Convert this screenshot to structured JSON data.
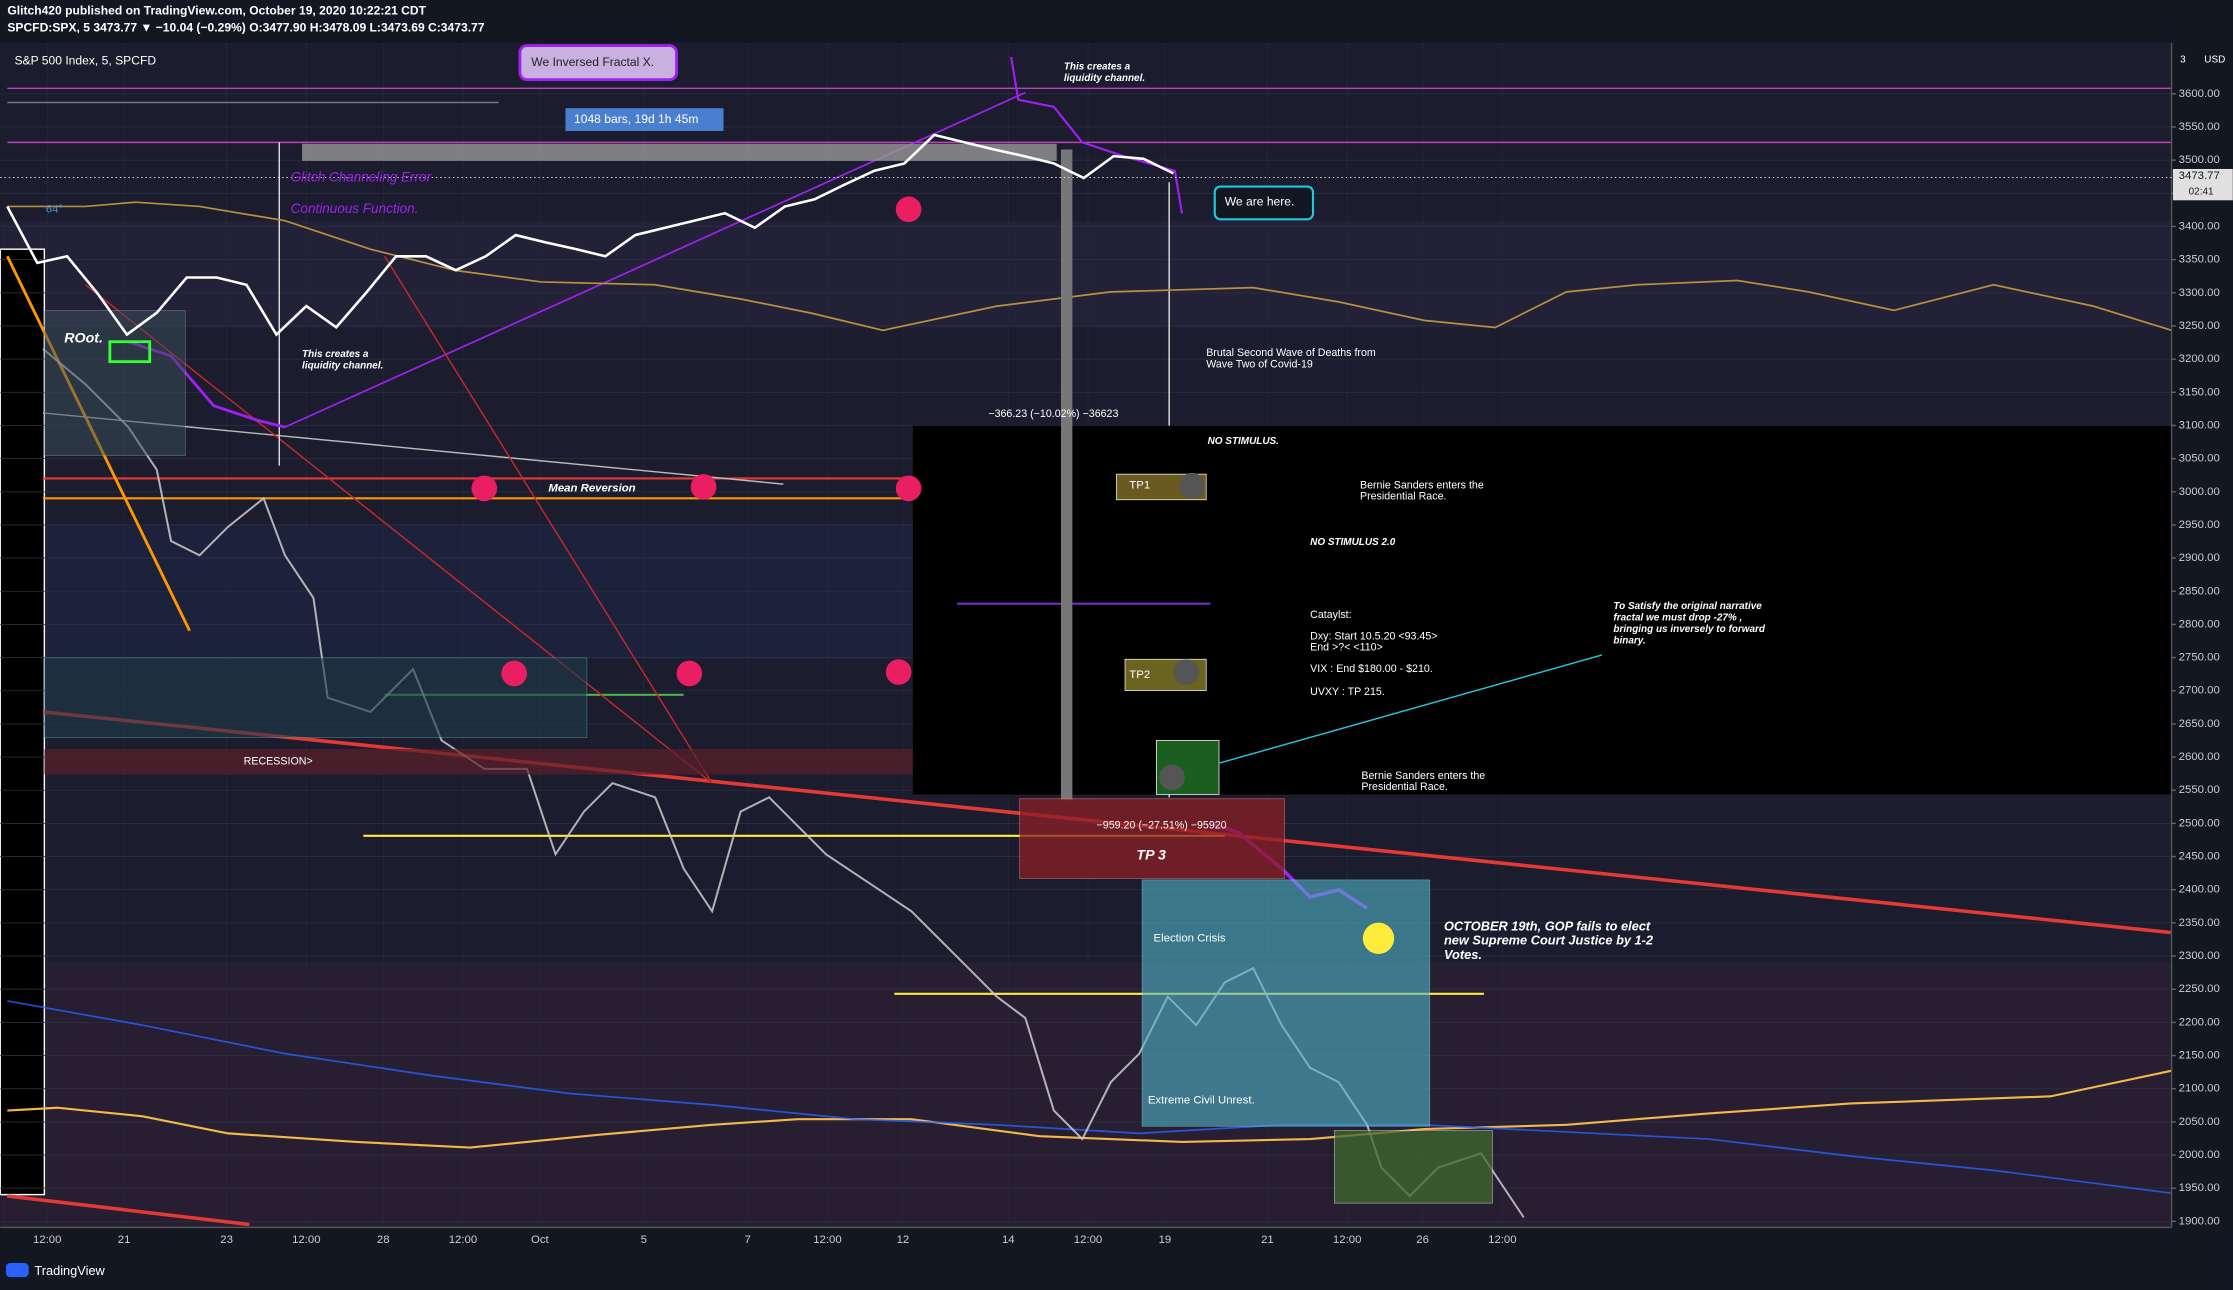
{
  "header": {
    "author_line": "Glitch420 published on TradingView.com, October 19, 2020 10:22:21 CDT",
    "symbol_line": "SPCFD:SPX, 5  3473.77 ▼ −10.04 (−0.29%) O:3477.90 H:3478.09 L:3473.69 C:3473.77"
  },
  "footer": {
    "brand": "TradingView"
  },
  "chart_data": {
    "type": "line",
    "title": "S&P 500 Index, 5, SPCFD",
    "y_unit": "USD",
    "axis_corner": "3",
    "color": "#ffffff",
    "values": [
      3430,
      3345,
      3355,
      3300,
      3237,
      3270,
      3323,
      3323,
      3312,
      3237,
      3280,
      3248,
      3300,
      3355,
      3355,
      3334,
      3355,
      3387,
      3376,
      3366,
      3355,
      3387,
      3398,
      3409,
      3420,
      3398,
      3430,
      3441,
      3463,
      3484,
      3495,
      3538,
      3527,
      3516,
      3506,
      3495,
      3473,
      3506,
      3502,
      3480
    ],
    "last_price": {
      "value": 3473.77,
      "label": "3473.77"
    },
    "countdown": "02:41",
    "ylim": [
      1891,
      3677
    ],
    "yticks": [
      {
        "value": 1900,
        "label": "1900.00"
      },
      {
        "value": 1950,
        "label": "1950.00"
      },
      {
        "value": 2000,
        "label": "2000.00"
      },
      {
        "value": 2050,
        "label": "2050.00"
      },
      {
        "value": 2100,
        "label": "2100.00"
      },
      {
        "value": 2150,
        "label": "2150.00"
      },
      {
        "value": 2200,
        "label": "2200.00"
      },
      {
        "value": 2250,
        "label": "2250.00"
      },
      {
        "value": 2300,
        "label": "2300.00"
      },
      {
        "value": 2350,
        "label": "2350.00"
      },
      {
        "value": 2400,
        "label": "2400.00"
      },
      {
        "value": 2450,
        "label": "2450.00"
      },
      {
        "value": 2500,
        "label": "2500.00"
      },
      {
        "value": 2550,
        "label": "2550.00"
      },
      {
        "value": 2600,
        "label": "2600.00"
      },
      {
        "value": 2650,
        "label": "2650.00"
      },
      {
        "value": 2700,
        "label": "2700.00"
      },
      {
        "value": 2750,
        "label": "2750.00"
      },
      {
        "value": 2800,
        "label": "2800.00"
      },
      {
        "value": 2850,
        "label": "2850.00"
      },
      {
        "value": 2900,
        "label": "2900.00"
      },
      {
        "value": 2950,
        "label": "2950.00"
      },
      {
        "value": 3000,
        "label": "3000.00"
      },
      {
        "value": 3050,
        "label": "3050.00"
      },
      {
        "value": 3100,
        "label": "3100.00"
      },
      {
        "value": 3150,
        "label": "3150.00"
      },
      {
        "value": 3200,
        "label": "3200.00"
      },
      {
        "value": 3250,
        "label": "3250.00"
      },
      {
        "value": 3300,
        "label": "3300.00"
      },
      {
        "value": 3350,
        "label": "3350.00"
      },
      {
        "value": 3400,
        "label": "3400.00"
      },
      {
        "value": 3450,
        "label": "3450.00"
      },
      {
        "value": 3500,
        "label": "3500.00"
      },
      {
        "value": 3550,
        "label": "3550.00"
      },
      {
        "value": 3600,
        "label": "3600.00"
      }
    ],
    "x_labels": [
      "12:00",
      "21",
      "23",
      "12:00",
      "28",
      "12:00",
      "Oct",
      "5",
      "7",
      "12:00",
      "12",
      "14",
      "12:00",
      "19",
      "21",
      "12:00",
      "26",
      "12:00"
    ],
    "grid": true,
    "annotations": [
      "We Inversed Fractal X.",
      "1048 bars, 19d 1h 45m",
      "This creates a",
      "liquidity channel.",
      "Glitch Channeling Error",
      "Continuous Function.",
      "64°",
      "We are here.",
      "ROot.",
      "This creates a",
      "liquidity channel.",
      "Brutal Second Wave of Deaths from",
      "Wave Two of Covid-19",
      "−366.23 (−10.02%) −36623",
      "NO STIMULUS.",
      "Mean Reversion",
      "TP1",
      "Bernie Sanders enters the",
      "Presidential Race.",
      "NO STIMULUS 2.0",
      "Cataylst:",
      "Dxy: Start 10.5.20 <93.45>",
      "End >?< <110>",
      "VIX : End $180.00 - $210.",
      "UVXY : TP 215.",
      "To Satisfy the original narrative",
      "fractal we must drop -27% ,",
      "bringing us inversely to forward",
      "binary.",
      "TP2",
      "RECESSION>",
      "Bernie Sanders enters the",
      "Presidential Race.",
      "−959.20 (−27.51%) −95920",
      "TP 3",
      "Election Crisis",
      "OCTOBER 19th, GOP fails to elect",
      "new Supreme Court Justice by 1-2",
      "Votes.",
      "Extreme Civil Unrest."
    ]
  }
}
